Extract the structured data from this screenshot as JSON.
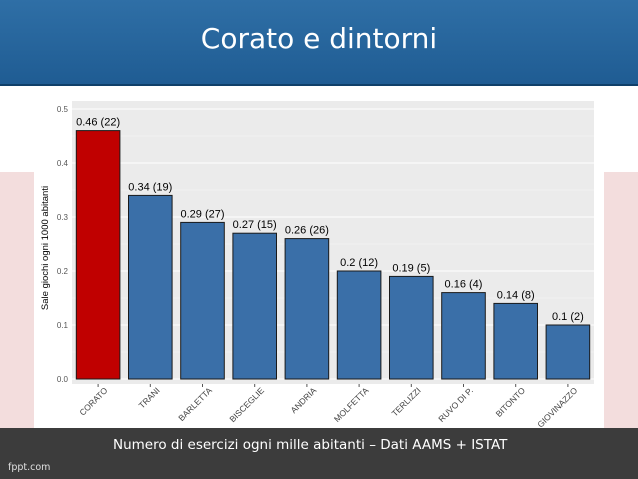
{
  "header": {
    "title": "Corato e dintorni"
  },
  "footer": {
    "caption": "Numero di esercizi ogni mille abitanti – Dati AAMS + ISTAT",
    "watermark": "fppt.com"
  },
  "colors": {
    "header_bg": "#2468a4",
    "highlight_bar": "#c00000",
    "bar": "#3a6fa8",
    "footer_bg": "#3c3c3c",
    "plot_bg": "#ebebeb"
  },
  "chart_data": {
    "type": "bar",
    "categories": [
      "CORATO",
      "TRANI",
      "BARLETTA",
      "BISCEGLIE",
      "ANDRIA",
      "MOLFETTA",
      "TERLIZZI",
      "RUVO DI P.",
      "BITONTO",
      "GIOVINAZZO"
    ],
    "values": [
      0.46,
      0.34,
      0.29,
      0.27,
      0.26,
      0.2,
      0.19,
      0.16,
      0.14,
      0.1
    ],
    "data_labels": [
      "0.46 (22)",
      "0.34 (19)",
      "0.29 (27)",
      "0.27 (15)",
      "0.26 (26)",
      "0.2 (12)",
      "0.19 (5)",
      "0.16 (4)",
      "0.14 (8)",
      "0.1 (2)"
    ],
    "highlight_index": 0,
    "xlabel": "",
    "ylabel": "Sale giochi ogni 1000 abitanti",
    "ylim": [
      0,
      0.5
    ],
    "yticks": [
      "0.0",
      "0.1",
      "0.2",
      "0.3",
      "0.4",
      "0.5"
    ],
    "grid": true
  }
}
